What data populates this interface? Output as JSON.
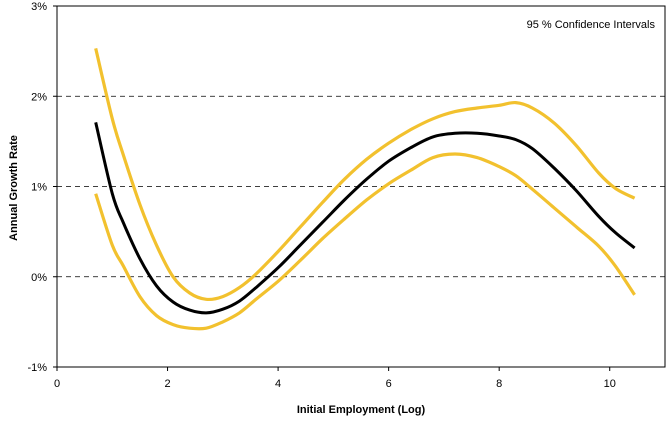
{
  "chart_data": {
    "type": "line",
    "xlabel": "Initial Employment (Log)",
    "ylabel": "Annual Growth Rate",
    "annotation": "95 % Confidence Intervals",
    "xlim": [
      0,
      11
    ],
    "ylim": [
      -1,
      3
    ],
    "x_ticks": [
      "0",
      "2",
      "4",
      "6",
      "8",
      "10"
    ],
    "y_ticks": [
      "-1%",
      "0%",
      "1%",
      "2%",
      "3%"
    ],
    "grid": "horizontal dashed at 0%, 1%, 2%",
    "legend": "none",
    "colors": {
      "estimate": "#000000",
      "interval": "#f2c12e",
      "grid": "#000000"
    },
    "series": [
      {
        "role": "upper",
        "points": [
          [
            0.7,
            2.53
          ],
          [
            1.0,
            1.75
          ],
          [
            1.2,
            1.35
          ],
          [
            1.5,
            0.8
          ],
          [
            1.8,
            0.35
          ],
          [
            2.1,
            0.0
          ],
          [
            2.4,
            -0.18
          ],
          [
            2.7,
            -0.25
          ],
          [
            3.0,
            -0.22
          ],
          [
            3.3,
            -0.12
          ],
          [
            3.6,
            0.03
          ],
          [
            4.0,
            0.28
          ],
          [
            4.4,
            0.55
          ],
          [
            4.8,
            0.82
          ],
          [
            5.2,
            1.08
          ],
          [
            5.6,
            1.3
          ],
          [
            6.0,
            1.48
          ],
          [
            6.4,
            1.63
          ],
          [
            6.8,
            1.75
          ],
          [
            7.2,
            1.83
          ],
          [
            7.6,
            1.87
          ],
          [
            8.0,
            1.9
          ],
          [
            8.3,
            1.93
          ],
          [
            8.6,
            1.87
          ],
          [
            9.0,
            1.7
          ],
          [
            9.4,
            1.45
          ],
          [
            9.8,
            1.15
          ],
          [
            10.1,
            0.98
          ],
          [
            10.45,
            0.87
          ]
        ]
      },
      {
        "role": "estimate",
        "points": [
          [
            0.7,
            1.71
          ],
          [
            1.0,
            0.92
          ],
          [
            1.2,
            0.6
          ],
          [
            1.5,
            0.2
          ],
          [
            1.8,
            -0.1
          ],
          [
            2.1,
            -0.28
          ],
          [
            2.4,
            -0.37
          ],
          [
            2.7,
            -0.4
          ],
          [
            3.0,
            -0.36
          ],
          [
            3.3,
            -0.27
          ],
          [
            3.6,
            -0.12
          ],
          [
            4.0,
            0.1
          ],
          [
            4.4,
            0.35
          ],
          [
            4.8,
            0.6
          ],
          [
            5.2,
            0.85
          ],
          [
            5.6,
            1.08
          ],
          [
            6.0,
            1.28
          ],
          [
            6.4,
            1.43
          ],
          [
            6.8,
            1.55
          ],
          [
            7.2,
            1.59
          ],
          [
            7.6,
            1.59
          ],
          [
            8.0,
            1.56
          ],
          [
            8.3,
            1.52
          ],
          [
            8.6,
            1.42
          ],
          [
            9.0,
            1.2
          ],
          [
            9.4,
            0.95
          ],
          [
            9.8,
            0.67
          ],
          [
            10.1,
            0.49
          ],
          [
            10.45,
            0.32
          ]
        ]
      },
      {
        "role": "lower",
        "points": [
          [
            0.7,
            0.92
          ],
          [
            1.0,
            0.35
          ],
          [
            1.2,
            0.12
          ],
          [
            1.5,
            -0.22
          ],
          [
            1.8,
            -0.43
          ],
          [
            2.1,
            -0.53
          ],
          [
            2.4,
            -0.57
          ],
          [
            2.7,
            -0.57
          ],
          [
            3.0,
            -0.5
          ],
          [
            3.3,
            -0.4
          ],
          [
            3.6,
            -0.25
          ],
          [
            4.0,
            -0.05
          ],
          [
            4.4,
            0.18
          ],
          [
            4.8,
            0.42
          ],
          [
            5.2,
            0.64
          ],
          [
            5.6,
            0.85
          ],
          [
            6.0,
            1.03
          ],
          [
            6.4,
            1.18
          ],
          [
            6.8,
            1.32
          ],
          [
            7.2,
            1.36
          ],
          [
            7.6,
            1.32
          ],
          [
            8.0,
            1.22
          ],
          [
            8.3,
            1.12
          ],
          [
            8.6,
            0.97
          ],
          [
            9.0,
            0.76
          ],
          [
            9.4,
            0.55
          ],
          [
            9.8,
            0.34
          ],
          [
            10.1,
            0.12
          ],
          [
            10.45,
            -0.2
          ]
        ]
      }
    ]
  }
}
